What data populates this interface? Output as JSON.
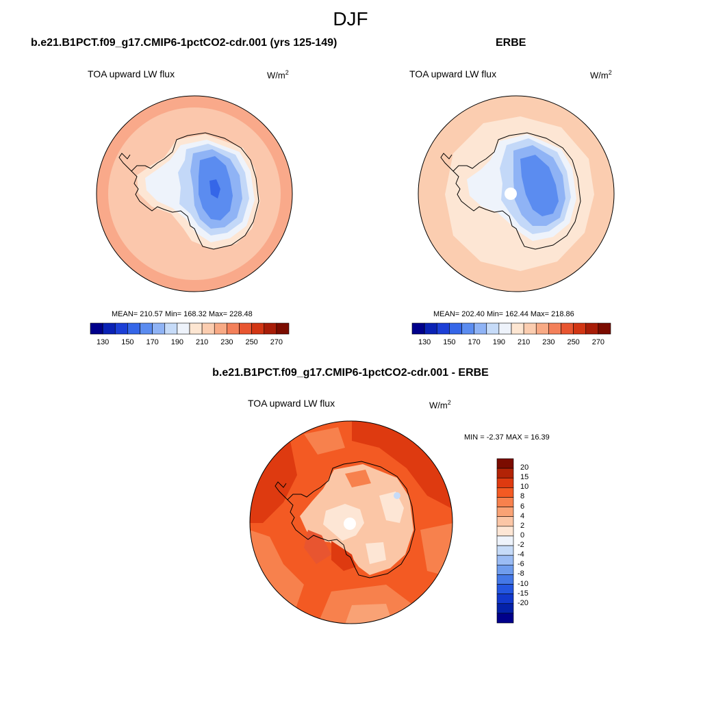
{
  "figure": {
    "season": "DJF",
    "units_base": "W/m",
    "units_exp": "2"
  },
  "panels": [
    {
      "title": "b.e21.B1PCT.f09_g17.CMIP6-1pctCO2-cdr.001 (yrs 125-149)",
      "variable": "TOA upward LW flux",
      "stats_text": "MEAN= 210.57  Min= 168.32  Max= 228.48"
    },
    {
      "title": "ERBE",
      "variable": "TOA upward LW flux",
      "stats_text": "MEAN= 202.40  Min= 162.44  Max= 218.86"
    },
    {
      "title": "b.e21.B1PCT.f09_g17.CMIP6-1pctCO2-cdr.001 - ERBE",
      "variable": "TOA upward LW flux",
      "stats_text": "MIN =  -2.37 MAX =  16.39"
    }
  ],
  "colorbar_abs": {
    "colors": [
      "#00008b",
      "#0a22b5",
      "#1c3fd6",
      "#3566e8",
      "#5b8cf0",
      "#8fb3f5",
      "#c6dbf8",
      "#eef3fb",
      "#fde6d2",
      "#fbcdb0",
      "#f8aa85",
      "#f3805a",
      "#e85530",
      "#d23614",
      "#a81d08",
      "#7b0c00"
    ],
    "tick_labels": [
      "130",
      "150",
      "170",
      "190",
      "210",
      "230",
      "250",
      "270"
    ]
  },
  "colorbar_diff": {
    "colors": [
      "#7b0c00",
      "#b22306",
      "#de3a10",
      "#f35a23",
      "#f7814d",
      "#f9a275",
      "#fbc6a6",
      "#fde6d5",
      "#eef3fb",
      "#c6dbf8",
      "#9bbcf4",
      "#6f9ced",
      "#4478e7",
      "#2456e0",
      "#1238cc",
      "#0421a8",
      "#00008b"
    ],
    "tick_labels": [
      "20",
      "15",
      "10",
      "8",
      "6",
      "4",
      "2",
      "0",
      "-2",
      "-4",
      "-6",
      "-8",
      "-10",
      "-15",
      "-20"
    ]
  },
  "chart_data": [
    {
      "type": "heatmap",
      "projection": "south polar stereographic",
      "title": "b.e21.B1PCT.f09_g17.CMIP6-1pctCO2-cdr.001 (yrs 125-149)",
      "variable": "TOA upward LW flux",
      "units": "W/m^2",
      "mean": 210.57,
      "min": 168.32,
      "max": 228.48,
      "contour_levels": [
        130,
        140,
        150,
        160,
        170,
        180,
        190,
        200,
        210,
        220,
        230,
        240,
        250,
        260,
        270
      ],
      "approx_regions": {
        "ocean_outer": 224,
        "ocean_inner": 216,
        "coastal_antarctica": 205,
        "plateau": 185,
        "plateau_min": 170
      }
    },
    {
      "type": "heatmap",
      "projection": "south polar stereographic",
      "title": "ERBE",
      "variable": "TOA upward LW flux",
      "units": "W/m^2",
      "mean": 202.4,
      "min": 162.44,
      "max": 218.86,
      "contour_levels": [
        130,
        140,
        150,
        160,
        170,
        180,
        190,
        200,
        210,
        220,
        230,
        240,
        250,
        260,
        270
      ],
      "approx_regions": {
        "ocean_outer": 216,
        "ocean_inner": 208,
        "coastal_antarctica": 195,
        "plateau": 178,
        "plateau_min": 165
      }
    },
    {
      "type": "heatmap",
      "projection": "south polar stereographic",
      "title": "b.e21.B1PCT.f09_g17.CMIP6-1pctCO2-cdr.001 - ERBE",
      "variable": "TOA upward LW flux",
      "units": "W/m^2",
      "min": -2.37,
      "max": 16.39,
      "contour_levels": [
        -20,
        -15,
        -10,
        -8,
        -6,
        -4,
        -2,
        0,
        2,
        4,
        6,
        8,
        10,
        15,
        20
      ],
      "approx_regions": {
        "ocean": 9,
        "ocean_strong": 12,
        "antarctica_interior": 3,
        "coast_patches": 7
      }
    }
  ]
}
